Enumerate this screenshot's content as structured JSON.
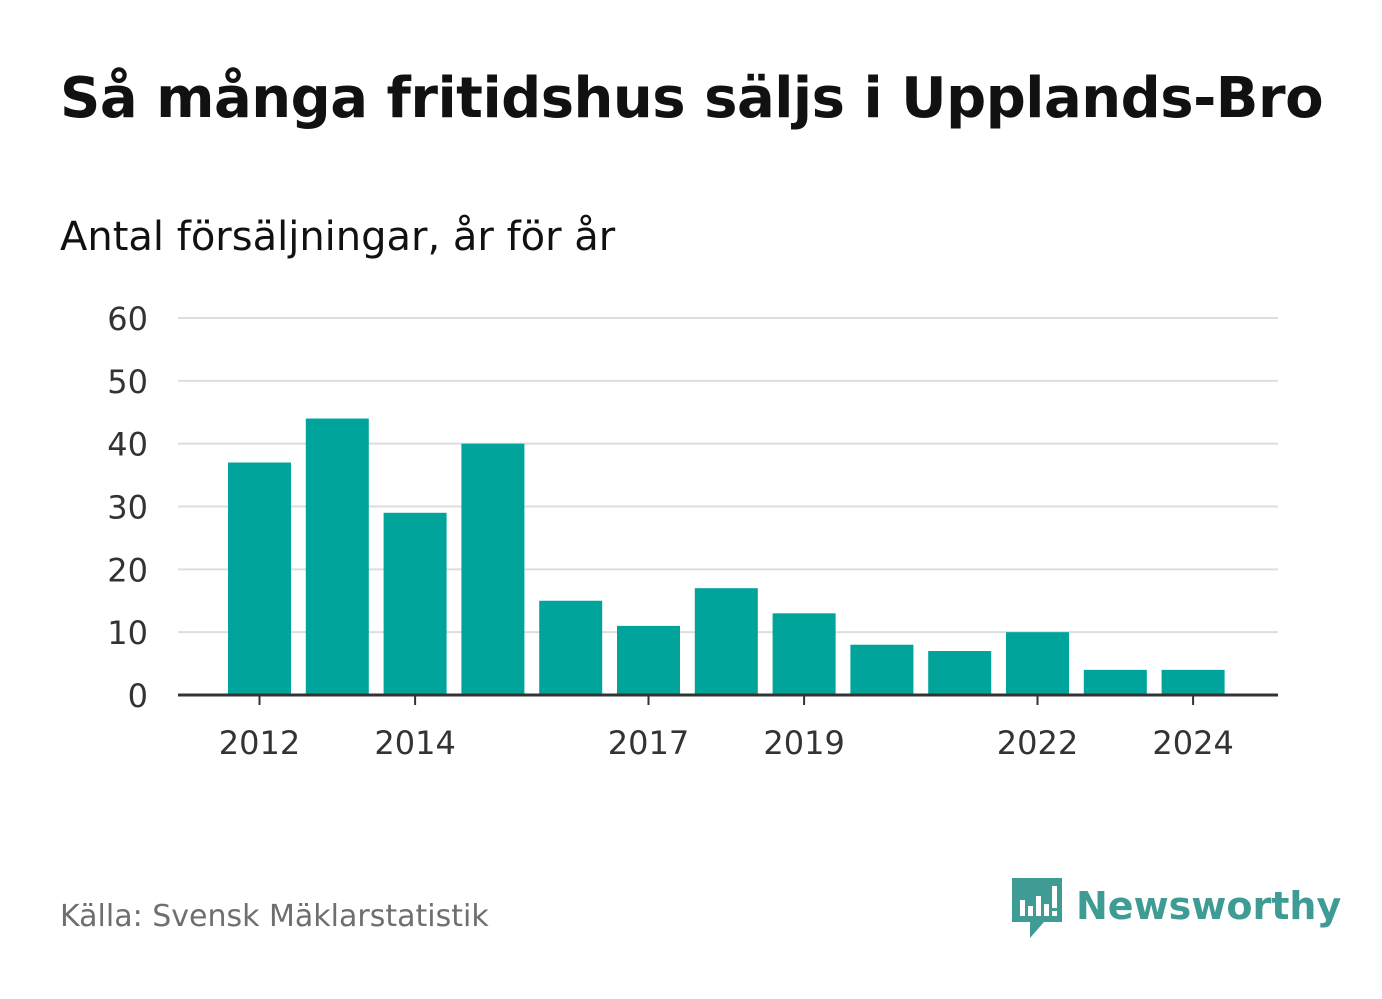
{
  "header": {
    "title": "Så många fritidshus säljs i Upplands-Bro",
    "subtitle": "Antal försäljningar, år för år"
  },
  "footer": {
    "source": "Källa: Svensk Mäklarstatistik",
    "brand": "Newsworthy",
    "brand_icon": "newsworthy-chat-bars-icon",
    "brand_color": "#3f9c95"
  },
  "colors": {
    "bar": "#00a49a",
    "grid": "#dddddd",
    "axis": "#333333",
    "text": "#333333"
  },
  "chart_data": {
    "type": "bar",
    "title": "Så många fritidshus säljs i Upplands-Bro",
    "subtitle": "Antal försäljningar, år för år",
    "xlabel": "",
    "ylabel": "",
    "categories": [
      "2012",
      "2013",
      "2014",
      "2015",
      "2016",
      "2017",
      "2018",
      "2019",
      "2020",
      "2021",
      "2022",
      "2023",
      "2024"
    ],
    "values": [
      37,
      44,
      29,
      40,
      15,
      11,
      17,
      13,
      8,
      7,
      10,
      4,
      4
    ],
    "x_tick_labels": [
      "2012",
      "2014",
      "2017",
      "2019",
      "2022",
      "2024"
    ],
    "y_ticks": [
      0,
      10,
      20,
      30,
      40,
      50,
      60
    ],
    "ylim": [
      0,
      60
    ],
    "grid": true,
    "legend": false
  }
}
